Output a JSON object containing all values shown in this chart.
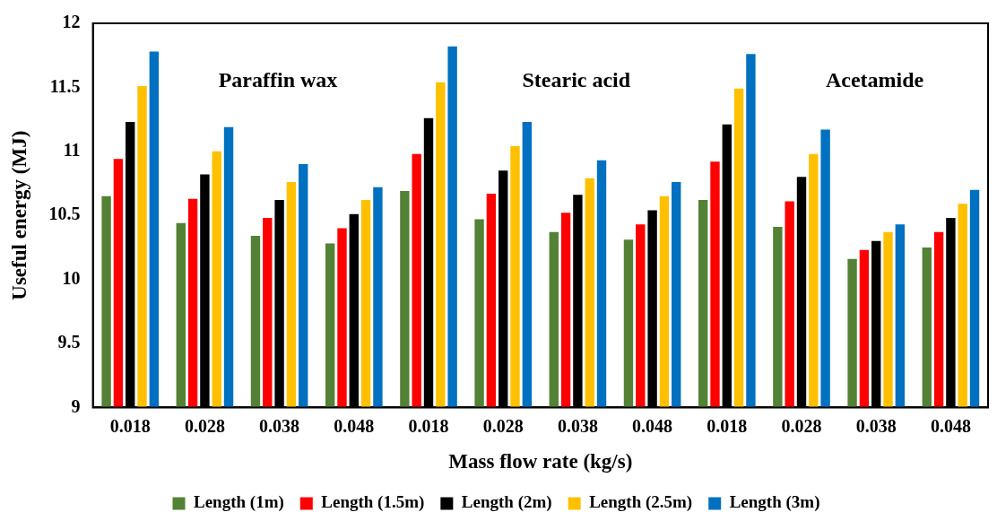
{
  "chart_data": {
    "type": "bar",
    "xlabel": "Mass flow rate (kg/s)",
    "ylabel": "Useful energy (MJ)",
    "categories": [
      "0.018",
      "0.028",
      "0.038",
      "0.048",
      "0.018",
      "0.028",
      "0.038",
      "0.048",
      "0.018",
      "0.028",
      "0.038",
      "0.048"
    ],
    "series": [
      {
        "name": "Length (1m)",
        "color": "#538135",
        "values": [
          10.65,
          10.44,
          10.34,
          10.28,
          10.69,
          10.47,
          10.37,
          10.31,
          10.62,
          10.41,
          10.16,
          10.25
        ]
      },
      {
        "name": "Length (1.5m)",
        "color": "#ff0000",
        "values": [
          10.94,
          10.63,
          10.48,
          10.4,
          10.98,
          10.67,
          10.52,
          10.43,
          10.92,
          10.61,
          10.23,
          10.37
        ]
      },
      {
        "name": "Length (2m)",
        "color": "#000000",
        "values": [
          11.23,
          10.82,
          10.62,
          10.51,
          11.26,
          10.85,
          10.66,
          10.54,
          11.21,
          10.8,
          10.3,
          10.48
        ]
      },
      {
        "name": "Length (2.5m)",
        "color": "#ffc000",
        "values": [
          11.51,
          11.0,
          10.76,
          10.62,
          11.54,
          11.04,
          10.79,
          10.65,
          11.49,
          10.98,
          10.37,
          10.59
        ]
      },
      {
        "name": "Length (3m)",
        "color": "#0070c0",
        "values": [
          11.78,
          11.19,
          10.9,
          10.72,
          11.82,
          11.23,
          10.93,
          10.76,
          11.76,
          11.17,
          10.43,
          10.7
        ]
      }
    ],
    "ylim": [
      9,
      12
    ],
    "yticks": [
      9,
      9.5,
      10,
      10.5,
      11,
      11.5,
      12
    ],
    "grid": false,
    "legend": "bottom",
    "annotations": [
      "Paraffin wax",
      "Stearic acid",
      "Acetamide"
    ]
  }
}
